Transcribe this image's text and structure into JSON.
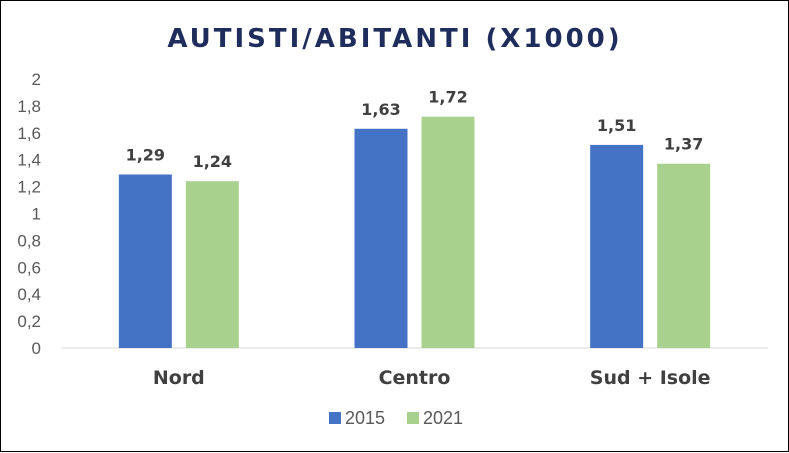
{
  "chart_data": {
    "type": "bar",
    "title": "AUTISTI/ABITANTI (X1000)",
    "categories": [
      "Nord",
      "Centro",
      "Sud + Isole"
    ],
    "series": [
      {
        "name": "2015",
        "values": [
          1.29,
          1.63,
          1.51
        ],
        "labels": [
          "1,29",
          "1,63",
          "1,51"
        ],
        "color": "#4472C4"
      },
      {
        "name": "2021",
        "values": [
          1.24,
          1.72,
          1.37
        ],
        "labels": [
          "1,24",
          "1,72",
          "1,37"
        ],
        "color": "#A9D18E"
      }
    ],
    "ylim": [
      0,
      2
    ],
    "yticks": [
      0,
      0.2,
      0.4,
      0.6,
      0.8,
      1,
      1.2,
      1.4,
      1.6,
      1.8,
      2
    ],
    "ytick_labels": [
      "0",
      "0,2",
      "0,4",
      "0,6",
      "0,8",
      "1",
      "1,2",
      "1,4",
      "1,6",
      "1,8",
      "2"
    ],
    "xlabel": "",
    "ylabel": "",
    "grid": false,
    "legend": "bottom",
    "title_color": "#1F2D5C",
    "axis_color": "#D9D9D9"
  }
}
